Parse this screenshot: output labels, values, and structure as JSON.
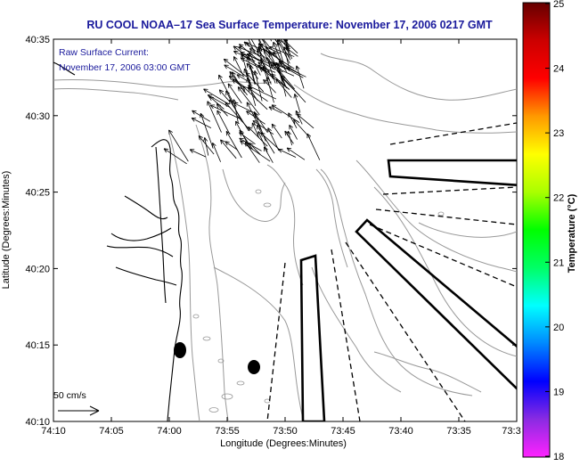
{
  "title": "RU COOL  NOAA–17  Sea Surface Temperature:  November 17, 2006 0217 GMT",
  "overlay": {
    "line1": "Raw Surface Current:",
    "line2": "November 17, 2006 03:00 GMT"
  },
  "axes": {
    "xlabel": "Longitude (Degrees:Minutes)",
    "ylabel": "Latitude (Degrees:Minutes)",
    "x_ticks": [
      "74:10",
      "74:05",
      "74:00",
      "73:55",
      "73:50",
      "73:45",
      "73:40",
      "73:35",
      "73:3"
    ],
    "y_ticks": [
      "40:35",
      "40:30",
      "40:25",
      "40:20",
      "40:15",
      "40:10"
    ]
  },
  "scale": {
    "label": "50 cm/s"
  },
  "colorbar": {
    "title": "Temperature (°C)",
    "min": 18,
    "max": 25,
    "ticks": [
      "25",
      "24",
      "23",
      "22",
      "21",
      "20",
      "19",
      "18"
    ],
    "colors": [
      "#ff22ff",
      "#8a2be2",
      "#0000ff",
      "#0088ff",
      "#00ffff",
      "#00ff66",
      "#00ff00",
      "#aaff00",
      "#ffff00",
      "#ff9900",
      "#ff0000",
      "#cc0000",
      "#660000"
    ]
  },
  "colors": {
    "title": "#1a1a9c",
    "contour": "#999999",
    "features": "#000000"
  }
}
